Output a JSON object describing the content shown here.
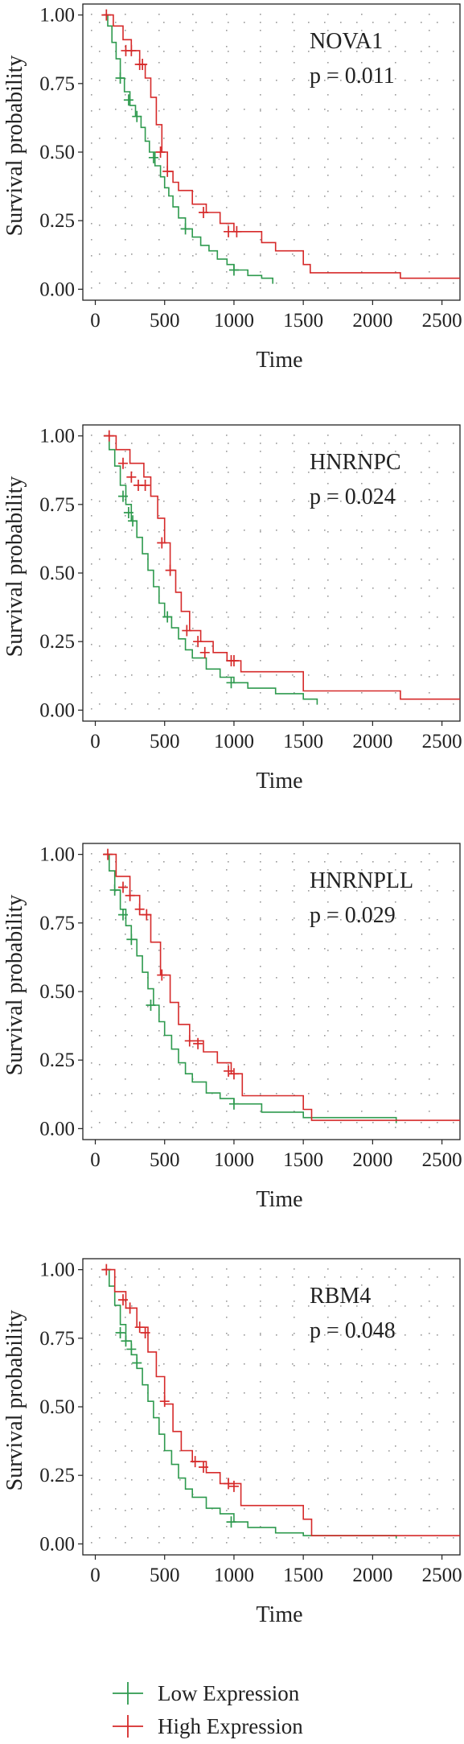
{
  "chart_data": [
    {
      "type": "line",
      "chart_kind": "kaplan-meier",
      "xlabel": "Time",
      "ylabel": "Survival probability",
      "xlim": [
        -90,
        2630
      ],
      "ylim": [
        -0.04,
        1.04
      ],
      "xticks": [
        0,
        500,
        1000,
        1500,
        2000,
        2500
      ],
      "yticks": [
        0.0,
        0.25,
        0.5,
        0.75,
        1.0
      ],
      "ytick_labels": [
        "0.00",
        "0.25",
        "0.50",
        "0.75",
        "1.00"
      ],
      "gene_label": "NOVA1",
      "p_label": "p = 0.011",
      "grid": true,
      "series": [
        {
          "color": "#2e9a4e",
          "x": [
            60,
            90,
            120,
            150,
            180,
            210,
            250,
            290,
            330,
            360,
            390,
            430,
            470,
            500,
            530,
            560,
            600,
            650,
            700,
            760,
            820,
            880,
            950,
            1000,
            1100,
            1200,
            1280
          ],
          "y": [
            1.0,
            0.96,
            0.9,
            0.84,
            0.77,
            0.72,
            0.67,
            0.63,
            0.59,
            0.54,
            0.5,
            0.45,
            0.41,
            0.37,
            0.34,
            0.3,
            0.26,
            0.22,
            0.19,
            0.16,
            0.14,
            0.11,
            0.09,
            0.07,
            0.05,
            0.04,
            0.02
          ],
          "censor_x": [
            180,
            240,
            300,
            420,
            650,
            1000
          ],
          "censor_y": [
            0.77,
            0.69,
            0.63,
            0.48,
            0.22,
            0.07
          ]
        },
        {
          "color": "#d62a2a",
          "x": [
            60,
            130,
            200,
            260,
            320,
            360,
            400,
            440,
            480,
            520,
            560,
            600,
            700,
            800,
            900,
            1000,
            1200,
            1300,
            1500,
            1550,
            2200,
            2630
          ],
          "y": [
            1.0,
            0.96,
            0.91,
            0.87,
            0.82,
            0.77,
            0.7,
            0.6,
            0.5,
            0.43,
            0.39,
            0.36,
            0.31,
            0.28,
            0.24,
            0.21,
            0.17,
            0.14,
            0.09,
            0.06,
            0.04,
            0.04
          ],
          "censor_x": [
            80,
            220,
            260,
            320,
            340,
            470,
            520,
            780,
            960,
            1020
          ],
          "censor_y": [
            1.0,
            0.87,
            0.87,
            0.82,
            0.82,
            0.5,
            0.43,
            0.28,
            0.21,
            0.21
          ]
        }
      ]
    },
    {
      "type": "line",
      "chart_kind": "kaplan-meier",
      "xlabel": "Time",
      "ylabel": "Survival probability",
      "xlim": [
        -90,
        2630
      ],
      "ylim": [
        -0.04,
        1.04
      ],
      "xticks": [
        0,
        500,
        1000,
        1500,
        2000,
        2500
      ],
      "yticks": [
        0.0,
        0.25,
        0.5,
        0.75,
        1.0
      ],
      "ytick_labels": [
        "0.00",
        "0.25",
        "0.50",
        "0.75",
        "1.00"
      ],
      "gene_label": "HNRNPC",
      "p_label": "p = 0.024",
      "grid": true,
      "series": [
        {
          "color": "#2e9a4e",
          "x": [
            60,
            100,
            140,
            180,
            220,
            260,
            300,
            340,
            380,
            420,
            460,
            500,
            550,
            600,
            650,
            700,
            800,
            900,
            1000,
            1100,
            1300,
            1500,
            1600
          ],
          "y": [
            1.0,
            0.95,
            0.89,
            0.82,
            0.75,
            0.69,
            0.63,
            0.57,
            0.51,
            0.45,
            0.39,
            0.34,
            0.3,
            0.26,
            0.22,
            0.19,
            0.15,
            0.12,
            0.1,
            0.08,
            0.06,
            0.04,
            0.02
          ],
          "censor_x": [
            200,
            240,
            270,
            520,
            980
          ],
          "censor_y": [
            0.78,
            0.72,
            0.69,
            0.34,
            0.1
          ]
        },
        {
          "color": "#d62a2a",
          "x": [
            60,
            150,
            250,
            350,
            400,
            450,
            500,
            540,
            580,
            620,
            680,
            760,
            850,
            950,
            1050,
            1200,
            1500,
            2200,
            2630
          ],
          "y": [
            1.0,
            0.95,
            0.9,
            0.85,
            0.78,
            0.7,
            0.61,
            0.51,
            0.43,
            0.36,
            0.29,
            0.25,
            0.21,
            0.18,
            0.14,
            0.14,
            0.07,
            0.04,
            0.04
          ],
          "censor_x": [
            100,
            200,
            260,
            310,
            360,
            480,
            540,
            660,
            740,
            790,
            980,
            1000
          ],
          "censor_y": [
            1.0,
            0.9,
            0.85,
            0.82,
            0.82,
            0.61,
            0.51,
            0.29,
            0.25,
            0.21,
            0.18,
            0.18
          ]
        }
      ]
    },
    {
      "type": "line",
      "chart_kind": "kaplan-meier",
      "xlabel": "Time",
      "ylabel": "Survival probability",
      "xlim": [
        -90,
        2630
      ],
      "ylim": [
        -0.04,
        1.04
      ],
      "xticks": [
        0,
        500,
        1000,
        1500,
        2000,
        2500
      ],
      "yticks": [
        0.0,
        0.25,
        0.5,
        0.75,
        1.0
      ],
      "ytick_labels": [
        "0.00",
        "0.25",
        "0.50",
        "0.75",
        "1.00"
      ],
      "gene_label": "HNRNPLL",
      "p_label": "p = 0.029",
      "grid": true,
      "series": [
        {
          "color": "#2e9a4e",
          "x": [
            60,
            100,
            140,
            180,
            220,
            260,
            300,
            340,
            380,
            420,
            460,
            500,
            550,
            600,
            650,
            700,
            800,
            900,
            1000,
            1200,
            1500,
            2170
          ],
          "y": [
            1.0,
            0.94,
            0.87,
            0.8,
            0.74,
            0.69,
            0.63,
            0.57,
            0.51,
            0.45,
            0.39,
            0.34,
            0.29,
            0.24,
            0.2,
            0.17,
            0.13,
            0.11,
            0.09,
            0.06,
            0.04,
            0.02
          ],
          "censor_x": [
            140,
            200,
            260,
            400,
            1000
          ],
          "censor_y": [
            0.87,
            0.78,
            0.69,
            0.45,
            0.09
          ]
        },
        {
          "color": "#d62a2a",
          "x": [
            60,
            150,
            250,
            320,
            400,
            470,
            540,
            600,
            680,
            780,
            880,
            980,
            1060,
            1500,
            1560,
            2630
          ],
          "y": [
            1.0,
            0.92,
            0.85,
            0.78,
            0.68,
            0.56,
            0.46,
            0.38,
            0.32,
            0.28,
            0.24,
            0.2,
            0.12,
            0.07,
            0.03,
            0.03
          ],
          "censor_x": [
            90,
            200,
            250,
            320,
            370,
            480,
            680,
            740,
            960,
            1000
          ],
          "censor_y": [
            1.0,
            0.88,
            0.85,
            0.8,
            0.78,
            0.56,
            0.32,
            0.31,
            0.21,
            0.2
          ]
        }
      ]
    },
    {
      "type": "line",
      "chart_kind": "kaplan-meier",
      "xlabel": "Time",
      "ylabel": "Survival probability",
      "xlim": [
        -90,
        2630
      ],
      "ylim": [
        -0.04,
        1.04
      ],
      "xticks": [
        0,
        500,
        1000,
        1500,
        2000,
        2500
      ],
      "yticks": [
        0.0,
        0.25,
        0.5,
        0.75,
        1.0
      ],
      "ytick_labels": [
        "0.00",
        "0.25",
        "0.50",
        "0.75",
        "1.00"
      ],
      "gene_label": "RBM4",
      "p_label": "p = 0.048",
      "grid": true,
      "series": [
        {
          "color": "#2e9a4e",
          "x": [
            60,
            100,
            140,
            180,
            220,
            260,
            300,
            340,
            380,
            420,
            460,
            500,
            550,
            600,
            650,
            700,
            800,
            900,
            1000,
            1100,
            1300,
            1500,
            2170
          ],
          "y": [
            1.0,
            0.94,
            0.87,
            0.8,
            0.74,
            0.69,
            0.64,
            0.58,
            0.52,
            0.46,
            0.4,
            0.34,
            0.29,
            0.24,
            0.2,
            0.17,
            0.13,
            0.11,
            0.08,
            0.06,
            0.04,
            0.03,
            0.02
          ],
          "censor_x": [
            180,
            220,
            260,
            300,
            980
          ],
          "censor_y": [
            0.77,
            0.74,
            0.71,
            0.66,
            0.08
          ]
        },
        {
          "color": "#d62a2a",
          "x": [
            60,
            140,
            220,
            300,
            380,
            440,
            500,
            560,
            620,
            700,
            800,
            900,
            1050,
            1500,
            1560,
            2630
          ],
          "y": [
            1.0,
            0.92,
            0.86,
            0.79,
            0.7,
            0.61,
            0.51,
            0.41,
            0.34,
            0.3,
            0.26,
            0.22,
            0.14,
            0.09,
            0.03,
            0.03
          ],
          "censor_x": [
            80,
            200,
            250,
            320,
            360,
            500,
            720,
            780,
            960,
            1000
          ],
          "censor_y": [
            1.0,
            0.89,
            0.86,
            0.79,
            0.77,
            0.52,
            0.3,
            0.28,
            0.22,
            0.21
          ]
        }
      ]
    }
  ],
  "legend": {
    "placement": "bottom-left",
    "entries": [
      {
        "label": "Low Expression",
        "color": "#2e9a4e"
      },
      {
        "label": "High Expression",
        "color": "#d62a2a"
      }
    ]
  }
}
